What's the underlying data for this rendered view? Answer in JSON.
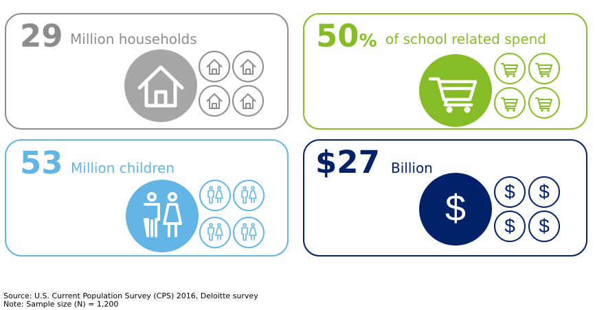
{
  "cards": {
    "households": {
      "number": "29",
      "label": "Million households",
      "color": "#8c8c8c",
      "icon": "house-icon"
    },
    "spend": {
      "number": "50",
      "unit": "%",
      "label": "of school related spend",
      "color": "#86bc25",
      "icon": "shopping-cart-icon"
    },
    "children": {
      "number": "53",
      "label": "Million children",
      "color": "#62b5e5",
      "icon": "children-icon"
    },
    "dollars": {
      "number": "$27",
      "label": "Billion",
      "color": "#012169",
      "icon": "dollar-icon"
    }
  },
  "footnotes": {
    "source": "Source: U.S. Current Population Survey (CPS) 2016, Deloitte survey",
    "note": "Note:  Sample size (N) = 1,200"
  }
}
